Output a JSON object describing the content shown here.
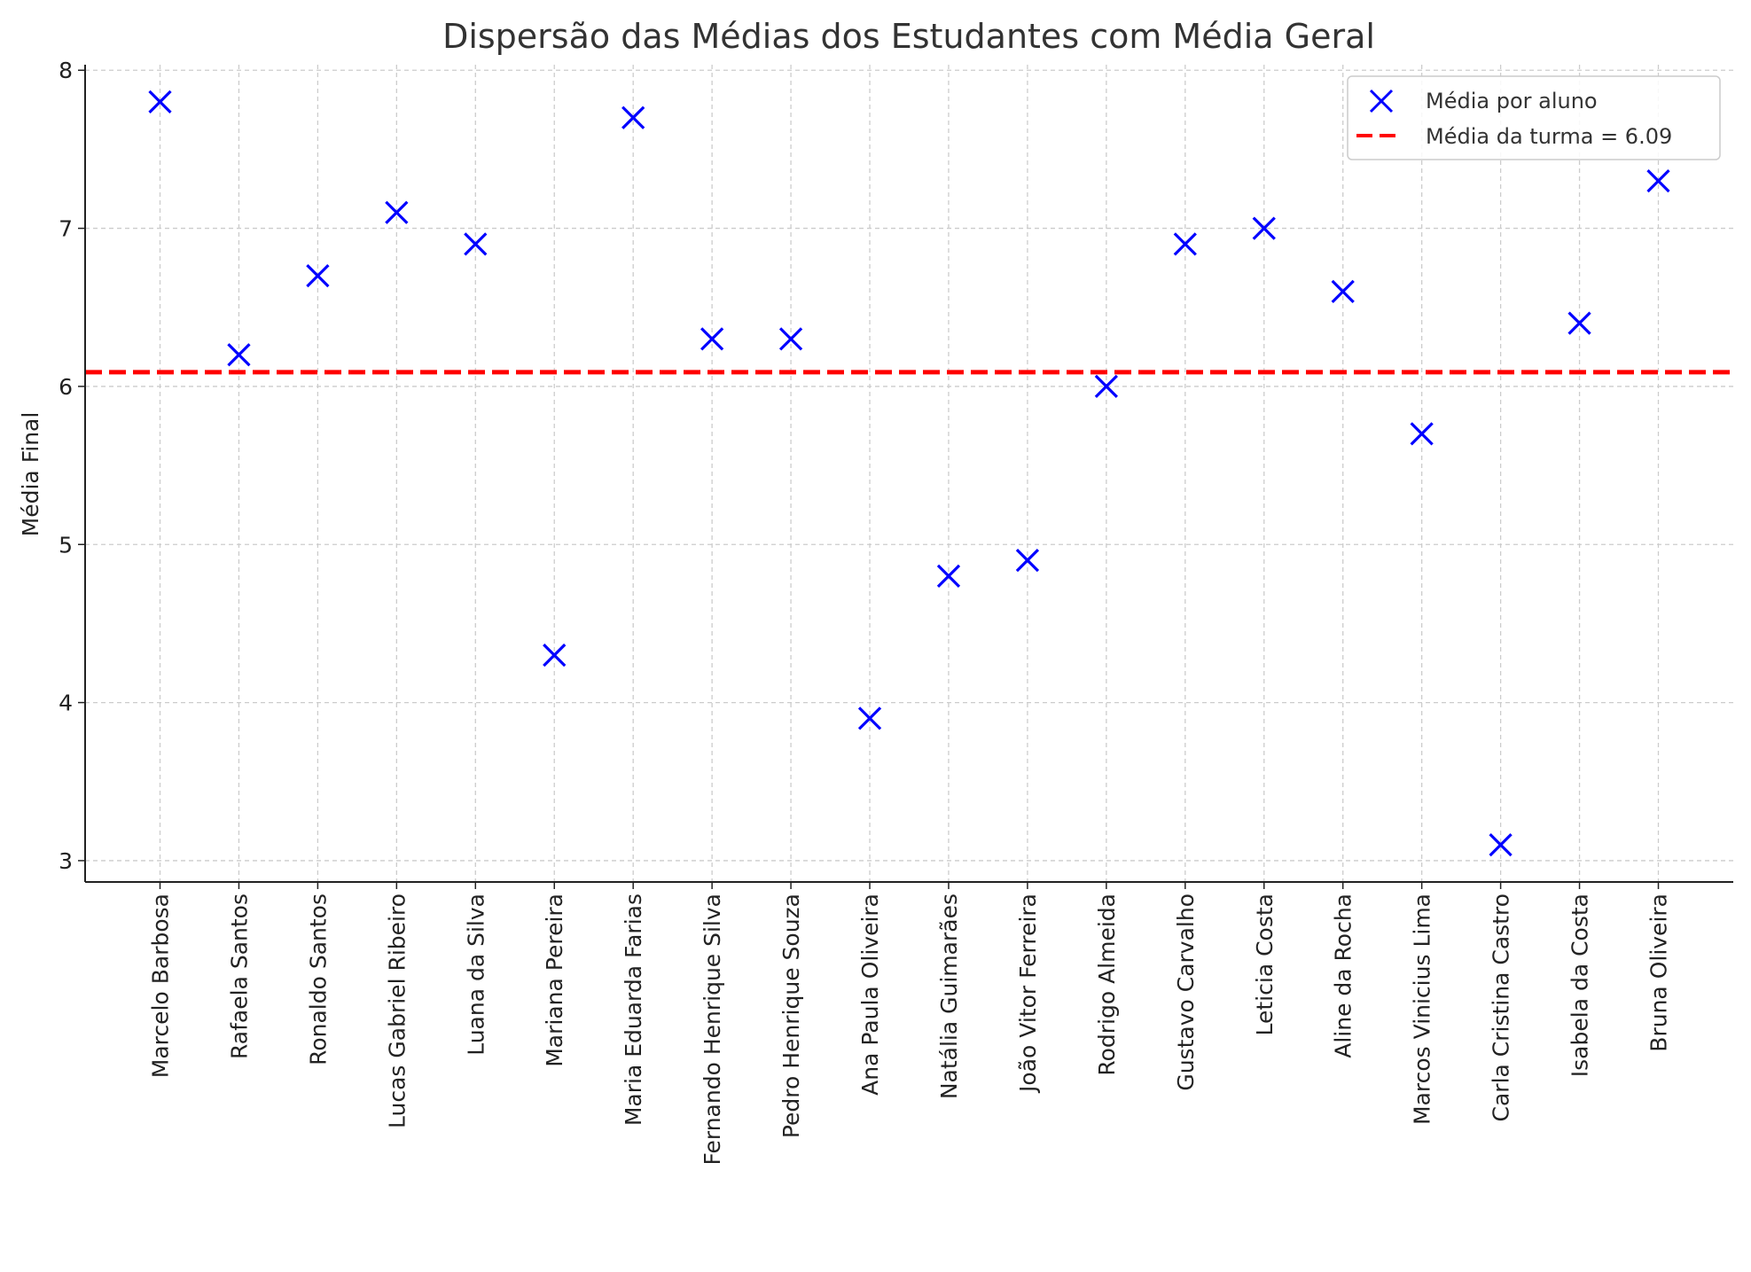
{
  "chart_data": {
    "type": "scatter",
    "title": "Dispersão das Médias dos Estudantes com Média Geral",
    "xlabel": "",
    "ylabel": "Média Final",
    "categories": [
      "Marcelo Barbosa",
      "Rafaela Santos",
      "Ronaldo Santos",
      "Lucas Gabriel Ribeiro",
      "Luana da Silva",
      "Mariana Pereira",
      "Maria Eduarda Farias",
      "Fernando Henrique Silva",
      "Pedro Henrique Souza",
      "Ana Paula Oliveira",
      "Natália Guimarães",
      "João Vitor Ferreira",
      "Rodrigo Almeida",
      "Gustavo Carvalho",
      "Leticia Costa",
      "Aline da Rocha",
      "Marcos Vinicius Lima",
      "Carla Cristina Castro",
      "Isabela da Costa",
      "Bruna Oliveira"
    ],
    "series": [
      {
        "name": "Média por aluno",
        "marker": "x",
        "color": "#0000ff",
        "values": [
          7.8,
          6.2,
          6.7,
          7.1,
          6.9,
          4.3,
          7.7,
          6.3,
          6.3,
          3.9,
          4.8,
          4.9,
          6.0,
          6.9,
          7.0,
          6.6,
          5.7,
          3.1,
          6.4,
          7.3
        ]
      }
    ],
    "hline": {
      "name": "Média da turma = 6.09",
      "value": 6.09,
      "color": "#ff0000",
      "style": "dashed"
    },
    "yticks": [
      3,
      4,
      5,
      6,
      7,
      8
    ],
    "ylim": [
      2.865,
      8.035
    ],
    "xlim": [
      -0.95,
      19.95
    ],
    "grid": true,
    "legend_position": "top-right"
  }
}
